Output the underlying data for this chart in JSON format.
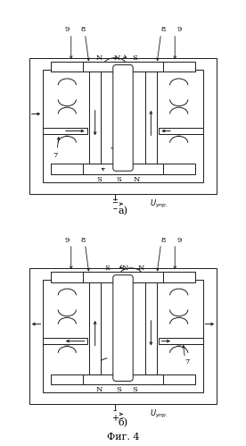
{
  "title": "Фиг. 4",
  "label_a": "а)",
  "label_b": "б)",
  "bg_color": "#ffffff",
  "line_color": "#1a1a1a",
  "fig_width": 2.76,
  "fig_height": 4.99,
  "dpi": 100
}
